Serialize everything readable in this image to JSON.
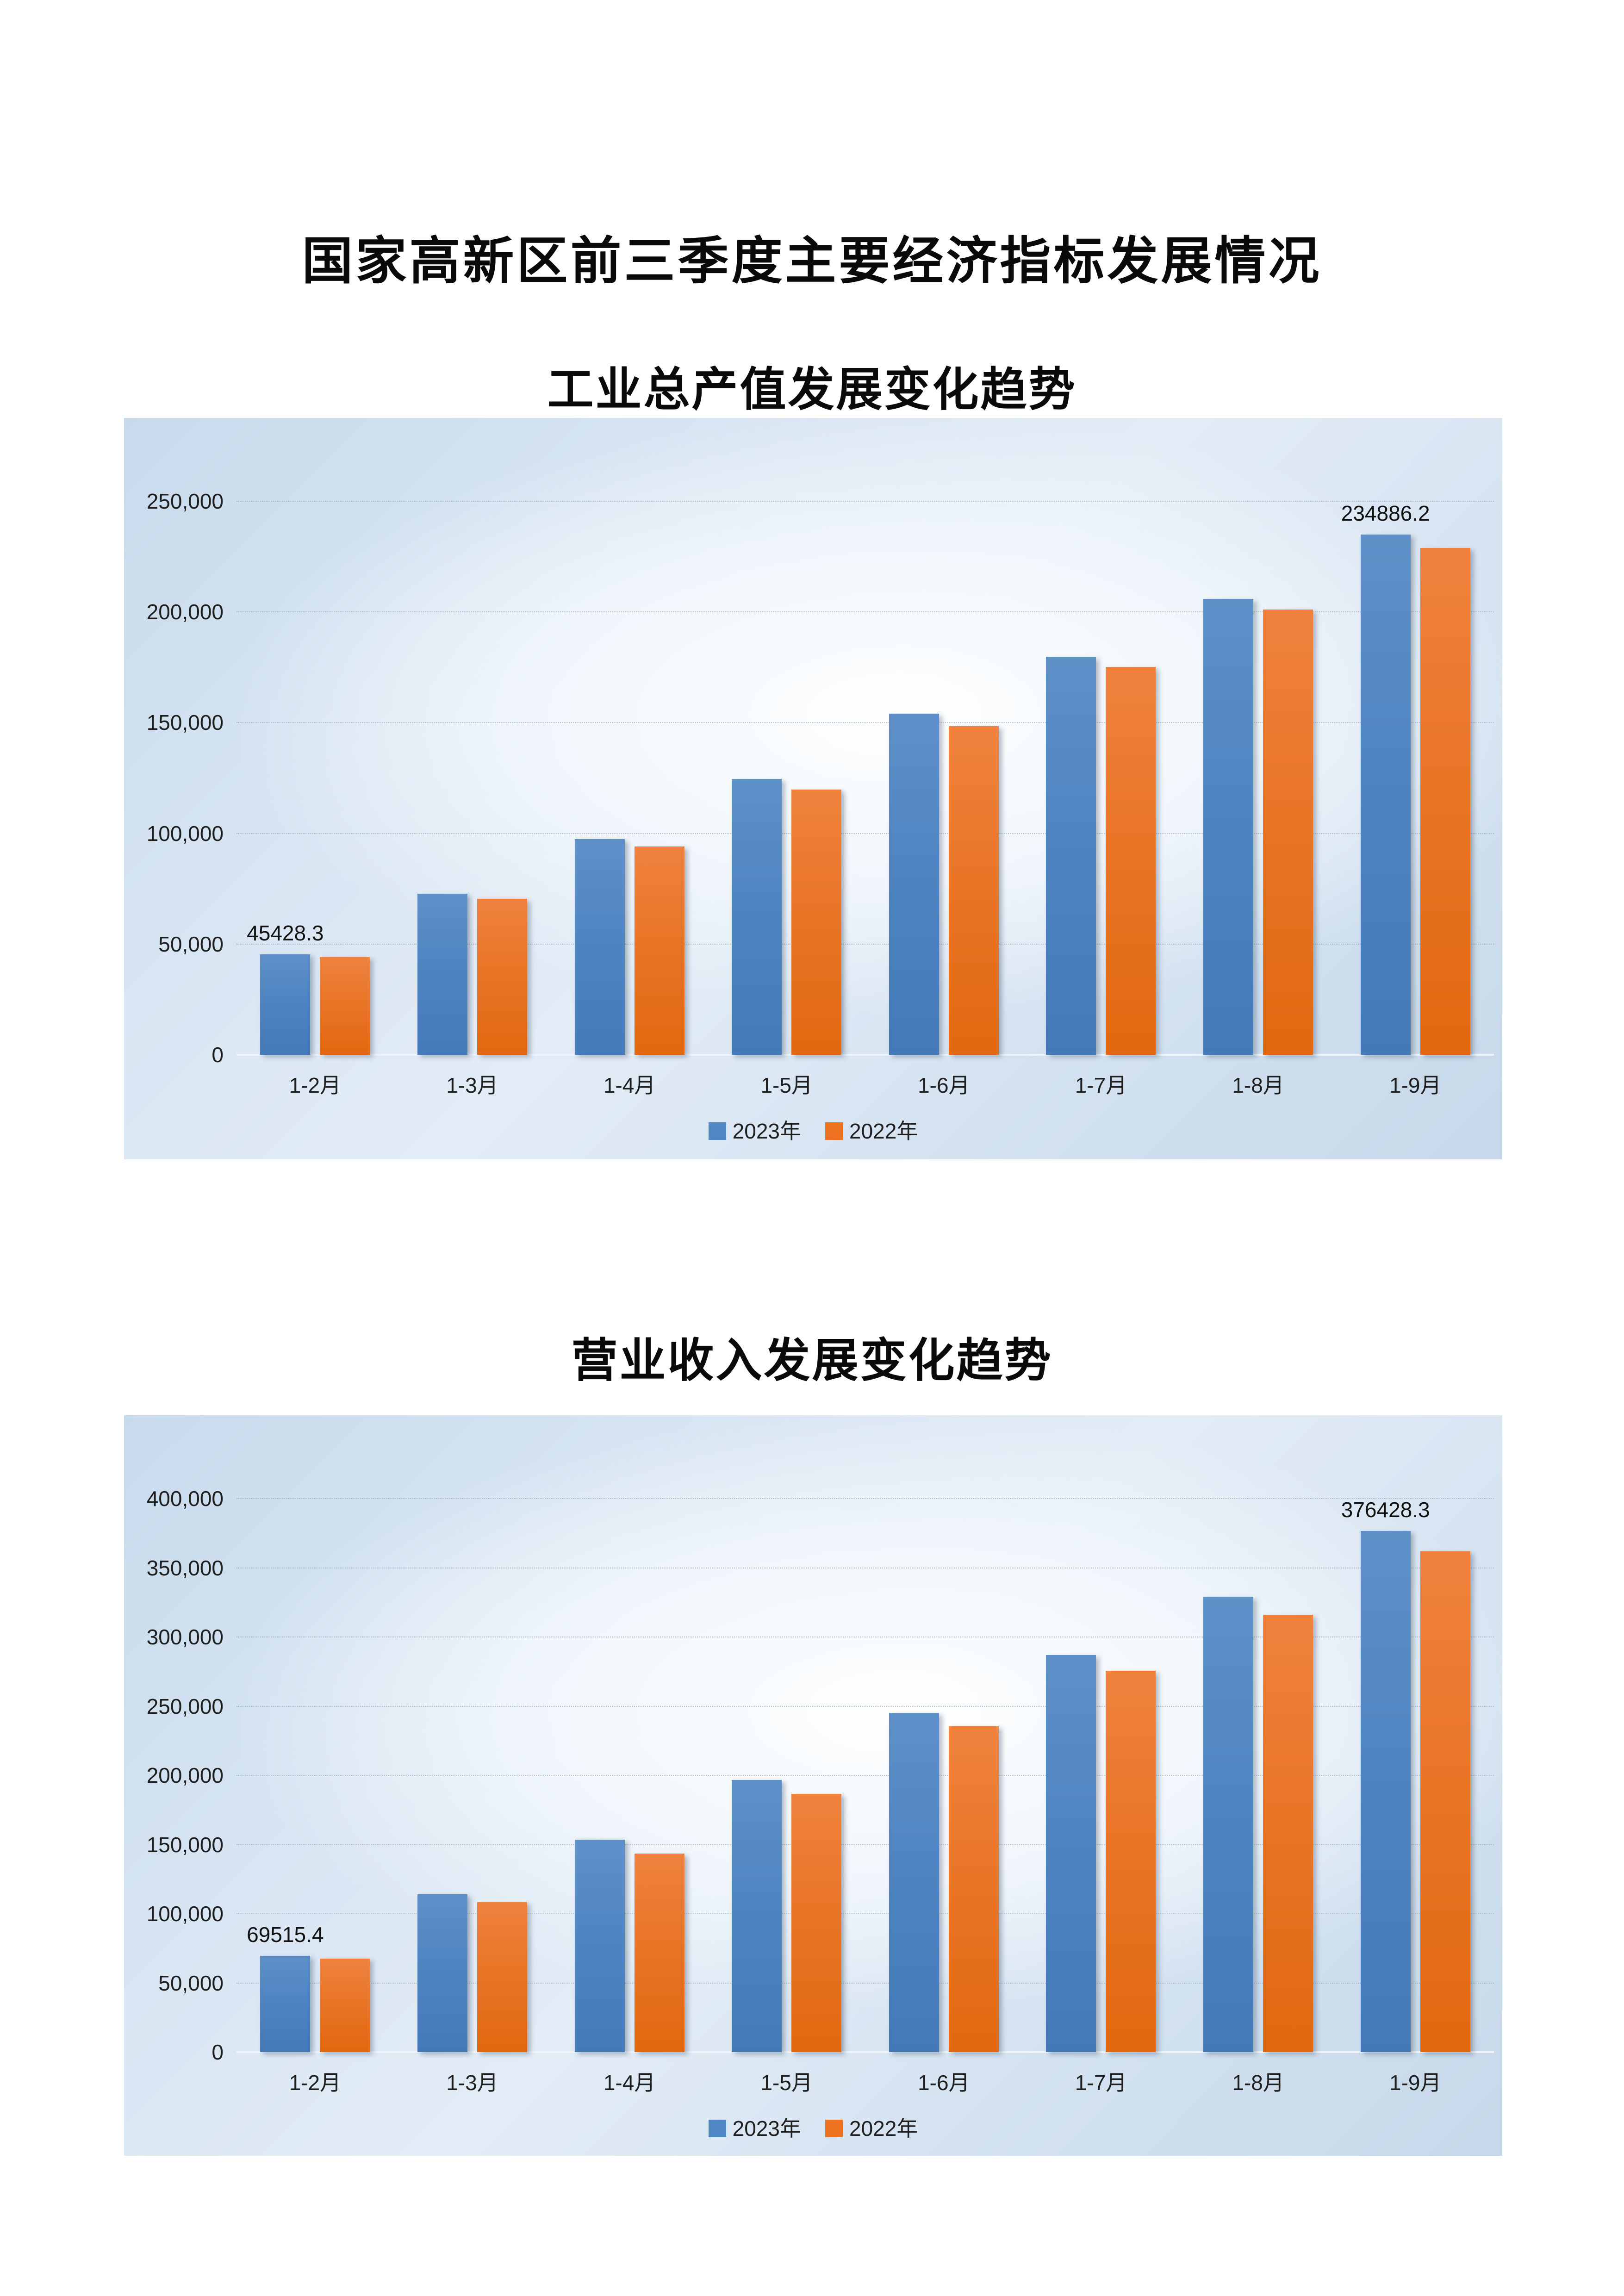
{
  "page": {
    "main_title": "国家高新区前三季度主要经济指标发展情况"
  },
  "chart_data": [
    {
      "type": "bar",
      "title": "工业总产值发展变化趋势",
      "categories": [
        "1-2月",
        "1-3月",
        "1-4月",
        "1-5月",
        "1-6月",
        "1-7月",
        "1-8月",
        "1-9月"
      ],
      "series": [
        {
          "name": "2023年",
          "color": "#4e86c6",
          "values": [
            45428.3,
            72800,
            97500,
            124500,
            154000,
            179800,
            205900,
            234886.2
          ]
        },
        {
          "name": "2022年",
          "color": "#ed7321",
          "values": [
            44200,
            70500,
            94000,
            119800,
            148500,
            175200,
            201000,
            228900
          ]
        }
      ],
      "ylim": [
        0,
        250000
      ],
      "ytick_step": 50000,
      "ytick_labels": [
        "0",
        "50,000",
        "100,000",
        "150,000",
        "200,000",
        "250,000"
      ],
      "grid": true,
      "legend_position": "bottom",
      "annotations": [
        {
          "series": 0,
          "index": 0,
          "text": "45428.3"
        },
        {
          "series": 0,
          "index": 7,
          "text": "234886.2"
        }
      ]
    },
    {
      "type": "bar",
      "title": "营业收入发展变化趋势",
      "categories": [
        "1-2月",
        "1-3月",
        "1-4月",
        "1-5月",
        "1-6月",
        "1-7月",
        "1-8月",
        "1-9月"
      ],
      "series": [
        {
          "name": "2023年",
          "color": "#4e86c6",
          "values": [
            69515.4,
            113900,
            153500,
            196500,
            245300,
            287000,
            329000,
            376428.3
          ]
        },
        {
          "name": "2022年",
          "color": "#ed7321",
          "values": [
            67500,
            108500,
            143500,
            186500,
            235500,
            275500,
            316000,
            362000
          ]
        }
      ],
      "ylim": [
        0,
        400000
      ],
      "ytick_step": 50000,
      "ytick_labels": [
        "0",
        "50,000",
        "100,000",
        "150,000",
        "200,000",
        "250,000",
        "300,000",
        "350,000",
        "400,000"
      ],
      "grid": true,
      "legend_position": "bottom",
      "annotations": [
        {
          "series": 0,
          "index": 0,
          "text": "69515.4"
        },
        {
          "series": 0,
          "index": 7,
          "text": "376428.3"
        }
      ]
    }
  ]
}
